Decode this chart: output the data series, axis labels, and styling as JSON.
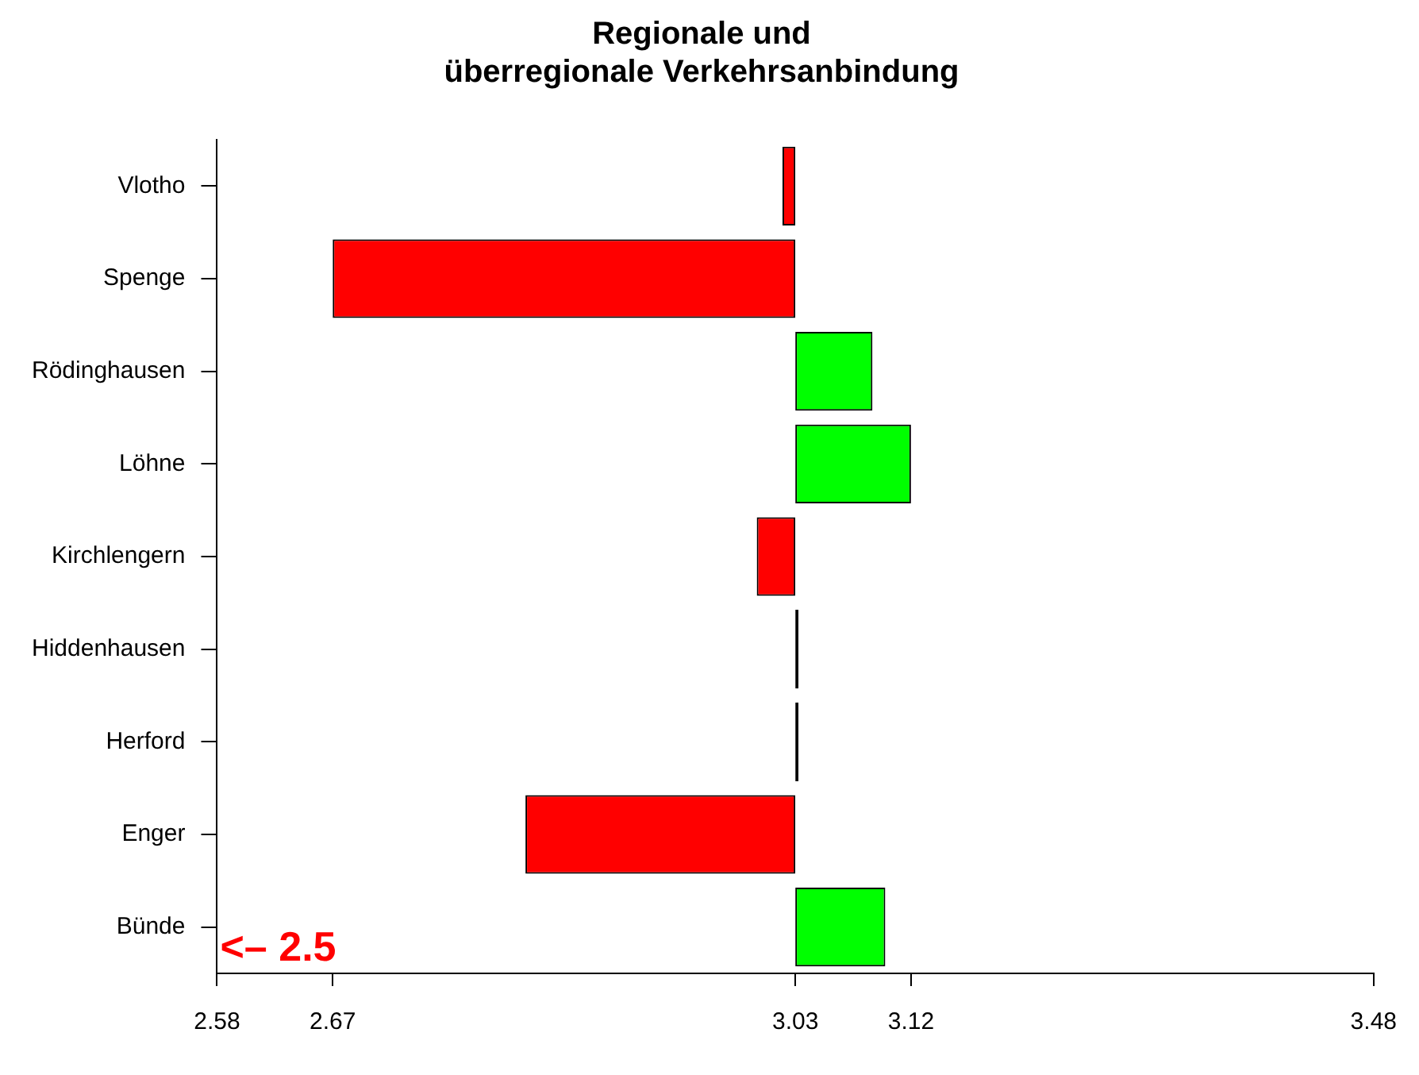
{
  "chart_data": {
    "type": "bar",
    "orientation": "horizontal",
    "title": "Regionale und\nüberregionale Verkehrsanbindung",
    "categories": [
      "Vlotho",
      "Spenge",
      "Rödinghausen",
      "Löhne",
      "Kirchlengern",
      "Hiddenhausen",
      "Herford",
      "Enger",
      "Bünde"
    ],
    "base": [
      3.03,
      3.03,
      3.03,
      3.03,
      3.03,
      3.03,
      3.03,
      3.03,
      3.03
    ],
    "values": [
      -0.01,
      -0.36,
      0.06,
      0.09,
      -0.03,
      0,
      0,
      -0.21,
      0.07
    ],
    "colors": [
      "#ff0000",
      "#ff0000",
      "#00ff00",
      "#00ff00",
      "#ff0000",
      "#000000",
      "#000000",
      "#ff0000",
      "#00ff00"
    ],
    "xlim": [
      2.58,
      3.48
    ],
    "xticks": [
      2.58,
      2.67,
      3.03,
      3.12,
      3.48
    ],
    "annotations": [
      "<– 2.5"
    ],
    "grid": false,
    "legend": false
  }
}
